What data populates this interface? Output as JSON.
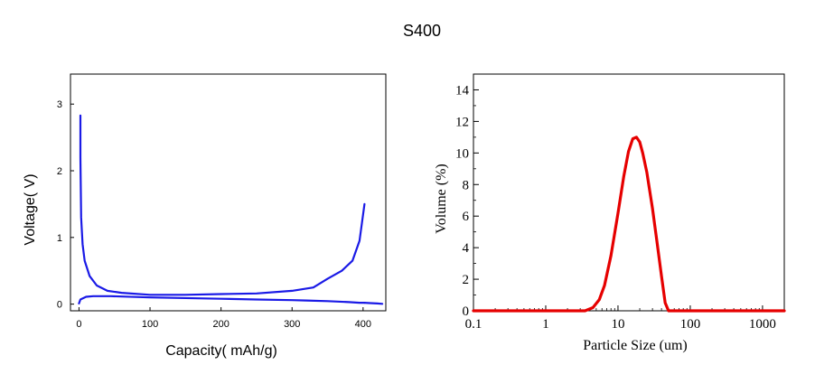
{
  "figure_title": "S400",
  "chart_data": [
    {
      "type": "line",
      "xlabel": "Capacity(   mAh/g)",
      "ylabel": "Voltage(   V)",
      "xlim": [
        -12,
        432
      ],
      "ylim": [
        -0.1,
        3.45
      ],
      "x_ticks": [
        0,
        100,
        200,
        300,
        400
      ],
      "y_ticks": [
        0,
        1,
        2,
        3
      ],
      "grid": false,
      "series": [
        {
          "color": "#1a1ae6",
          "x": [
            0,
            2,
            10,
            20,
            45,
            100,
            200,
            250,
            300,
            320,
            350,
            380,
            395,
            402
          ],
          "y": [
            0.01,
            0.07,
            0.11,
            0.12,
            0.12,
            0.1,
            0.08,
            0.07,
            0.06,
            0.055,
            0.045,
            0.03,
            0.02,
            0.02
          ]
        },
        {
          "color": "#1a1ae6",
          "x": [
            2,
            2,
            3,
            5,
            8,
            15,
            25,
            40,
            60,
            100,
            150,
            200,
            250,
            300,
            330,
            350,
            370,
            385,
            395,
            402
          ],
          "y": [
            2.83,
            2.2,
            1.3,
            0.9,
            0.65,
            0.42,
            0.28,
            0.2,
            0.17,
            0.14,
            0.14,
            0.15,
            0.16,
            0.2,
            0.25,
            0.38,
            0.5,
            0.65,
            0.95,
            1.5
          ]
        },
        {
          "color": "#1a1ae6",
          "x": [
            402,
            410,
            420,
            427
          ],
          "y": [
            0.02,
            0.015,
            0.01,
            0.005
          ]
        }
      ]
    },
    {
      "type": "line",
      "xlabel": "Particle Size (um)",
      "ylabel": "Volume (%)",
      "xscale": "log",
      "xlim": [
        0.1,
        2000
      ],
      "ylim": [
        0,
        15
      ],
      "x_ticks": [
        "0.1",
        "1",
        "10",
        "100",
        "1000"
      ],
      "y_ticks": [
        0,
        2,
        4,
        6,
        8,
        10,
        12,
        14
      ],
      "grid": false,
      "series": [
        {
          "color": "#e60000",
          "x": [
            0.1,
            3.5,
            4.5,
            5.5,
            6.5,
            8,
            10,
            12,
            14,
            16,
            18,
            20,
            22,
            25,
            30,
            35,
            40,
            45,
            50,
            2000
          ],
          "y": [
            0,
            0,
            0.2,
            0.7,
            1.6,
            3.5,
            6.2,
            8.5,
            10.1,
            10.9,
            11.0,
            10.7,
            10.0,
            8.8,
            6.5,
            4.2,
            2.2,
            0.5,
            0,
            0
          ]
        }
      ]
    }
  ]
}
